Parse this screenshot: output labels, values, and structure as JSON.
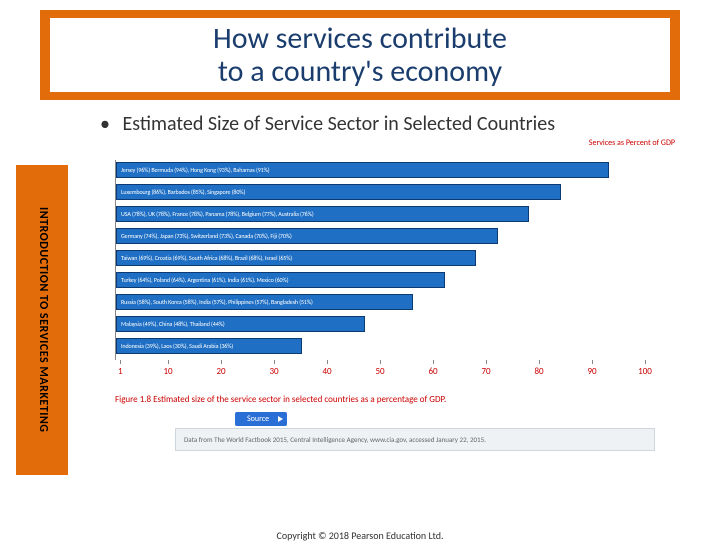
{
  "title": {
    "line1": "How services contribute",
    "line2": "to a country's economy"
  },
  "subtitle": "Estimated Size of Service Sector in Selected Countries",
  "sidebar_label": "INTRODUCTION TO SERVICES MARKETING",
  "chart": {
    "type": "bar-horizontal",
    "max": 100,
    "bar_color": "#1f6fc4",
    "bar_border": "#0d3a73",
    "tick_color": "#c00",
    "axis_caption": "Services as Percent of GDP",
    "ticks": [
      1,
      10,
      20,
      30,
      40,
      50,
      60,
      70,
      80,
      90,
      100
    ],
    "bars": [
      {
        "label": "Jersey (96%) Bermuda (94%), Hong Kong (93%), Bahamas (91%)",
        "value": 93
      },
      {
        "label": "Luxembourg (86%), Barbados (85%), Singapore (80%)",
        "value": 84
      },
      {
        "label": "USA (78%), UK (78%), France (78%), Panama (78%), Belgium (77%), Australia (76%)",
        "value": 78
      },
      {
        "label": "Germany (74%), Japan (73%), Switzerland (73%), Canada (70%), Fiji (70%)",
        "value": 72
      },
      {
        "label": "Taiwan (69%), Croatia (69%), South Africa (68%), Brazil (68%), Israel (65%)",
        "value": 68
      },
      {
        "label": "Turkey (64%), Poland (64%), Argentina (61%), India (61%), Mexico (60%)",
        "value": 62
      },
      {
        "label": "Russia (58%), South Korea (58%), India (57%), Philippines (57%), Bangladesh (51%)",
        "value": 56
      },
      {
        "label": "Malaysia (49%), China (48%), Thailand (44%)",
        "value": 47
      },
      {
        "label": "Indonesia (39%), Laos (30%), Saudi Arabia (36%)",
        "value": 35
      }
    ]
  },
  "figure_caption": "Figure 1.8  Estimated size of the service sector in selected countries as a percentage of GDP.",
  "source_button": "Source",
  "source_text": "Data from The World Factbook 2015, Central Intelligence Agency, www.cia.gov, accessed January 22, 2015.",
  "copyright": "Copyright © 2018 Pearson Education Ltd."
}
